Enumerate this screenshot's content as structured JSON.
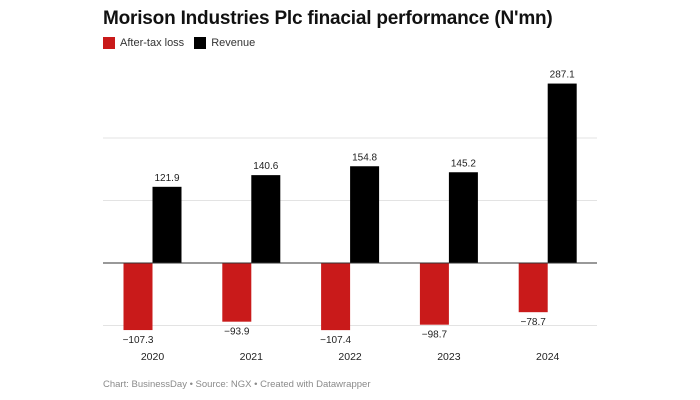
{
  "chart_data": {
    "type": "bar",
    "title": "Morison Industries Plc finacial performance (N'mn)",
    "categories": [
      "2020",
      "2021",
      "2022",
      "2023",
      "2024"
    ],
    "series": [
      {
        "name": "After-tax loss",
        "color": "#c91a1a",
        "values": [
          -107.3,
          -93.9,
          -107.4,
          -98.7,
          -78.7
        ],
        "labels": [
          "−107.3",
          "−93.9",
          "−107.4",
          "−98.7",
          "−78.7"
        ]
      },
      {
        "name": "Revenue",
        "color": "#000000",
        "values": [
          121.9,
          140.6,
          154.8,
          145.2,
          287.1
        ],
        "labels": [
          "121.9",
          "140.6",
          "154.8",
          "145.2",
          "287.1"
        ]
      }
    ],
    "ylim": [
      -120,
      300
    ],
    "gridlines": [
      -100,
      100,
      200
    ],
    "xlabel": "",
    "ylabel": "",
    "legend_position": "top-left"
  },
  "footer": "Chart: BusinessDay • Source: NGX • Created with Datawrapper"
}
